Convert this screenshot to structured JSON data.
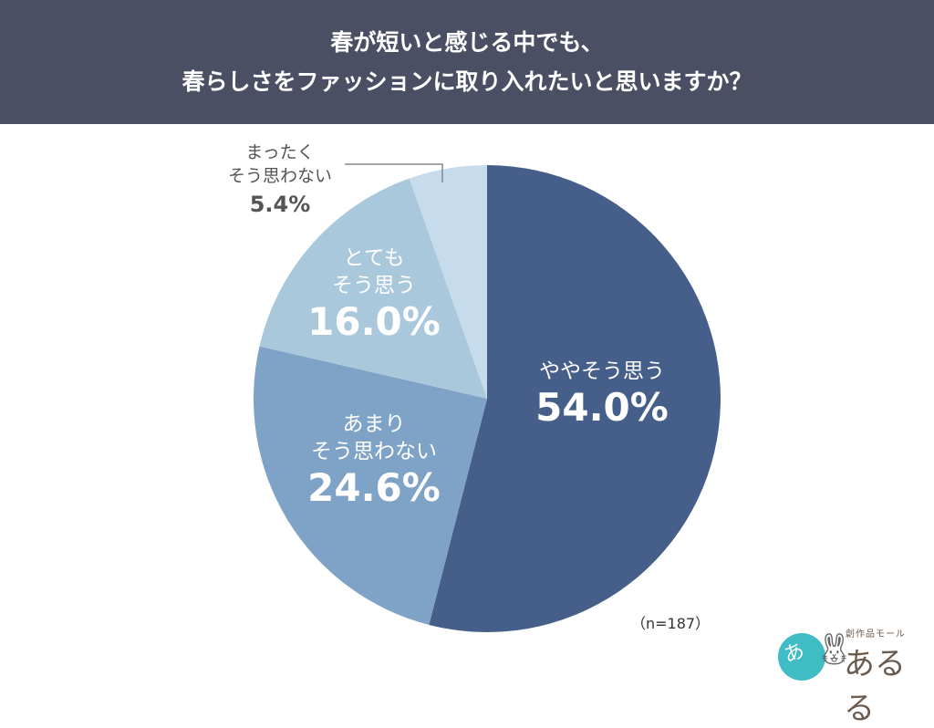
{
  "header": {
    "title_line1": "春が短いと感じる中でも、",
    "title_line2": "春らしさをファッションに取り入れたいと思いますか？",
    "background": "#4b4f63"
  },
  "chart_data": {
    "type": "pie",
    "title": "春が短いと感じる中でも、春らしさをファッションに取り入れたいと思いますか？",
    "start_angle": "12 o'clock, clockwise",
    "categories": [
      "ややそう思う",
      "あまりそう思わない",
      "とてもそう思う",
      "まったくそう思わない"
    ],
    "values": [
      54.0,
      24.6,
      16.0,
      5.4
    ],
    "unit": "%",
    "colors": [
      "#465f8a",
      "#7ea3c6",
      "#a9c8dc",
      "#c6dbeb"
    ],
    "sample_size": "n=187",
    "legend": "none (direct labels)"
  },
  "labels": [
    {
      "line1": "やや",
      "line2": "そう思う",
      "full": "ややそう思う",
      "value": "54.0%"
    },
    {
      "line1": "あまり",
      "line2": "そう思わない",
      "value": "24.6%"
    },
    {
      "line1": "とても",
      "line2": "そう思う",
      "value": "16.0%"
    },
    {
      "line1": "まったく",
      "line2": "そう思わない",
      "value": "5.4%"
    }
  ],
  "note": "（n=187）",
  "logo": {
    "small_text": "創作品モール",
    "brand_text": "あるる",
    "mark": "あ",
    "circle_color": "#3fbcc4"
  }
}
